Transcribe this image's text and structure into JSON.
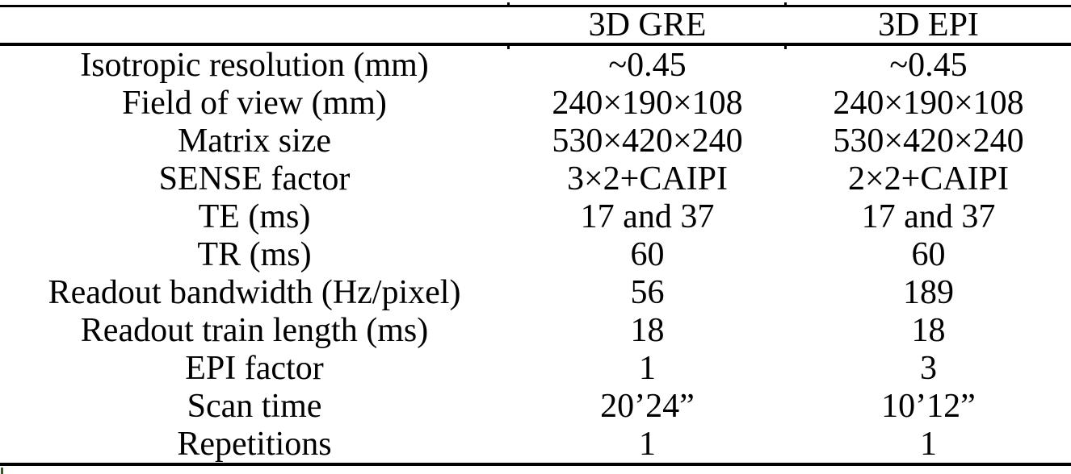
{
  "page": {
    "background_color": "#ffffff",
    "text_color": "#000000",
    "rule_color": "#000000",
    "artifact_tick_color": "#2f5e1e"
  },
  "table": {
    "columns": [
      "",
      "3D GRE",
      "3D EPI"
    ],
    "rows": [
      [
        "Isotropic resolution (mm)",
        "~0.45",
        "~0.45"
      ],
      [
        "Field of view (mm)",
        "240×190×108",
        "240×190×108"
      ],
      [
        "Matrix size",
        "530×420×240",
        "530×420×240"
      ],
      [
        "SENSE factor",
        "3×2+CAIPI",
        "2×2+CAIPI"
      ],
      [
        "TE (ms)",
        "17 and 37",
        "17 and 37"
      ],
      [
        "TR (ms)",
        "60",
        "60"
      ],
      [
        "Readout bandwidth (Hz/pixel)",
        "56",
        "189"
      ],
      [
        "Readout train length (ms)",
        "18",
        "18"
      ],
      [
        "EPI factor",
        "1",
        "3"
      ],
      [
        "Scan time",
        "20’24”",
        "10’12”"
      ],
      [
        "Repetitions",
        "1",
        "1"
      ]
    ]
  }
}
